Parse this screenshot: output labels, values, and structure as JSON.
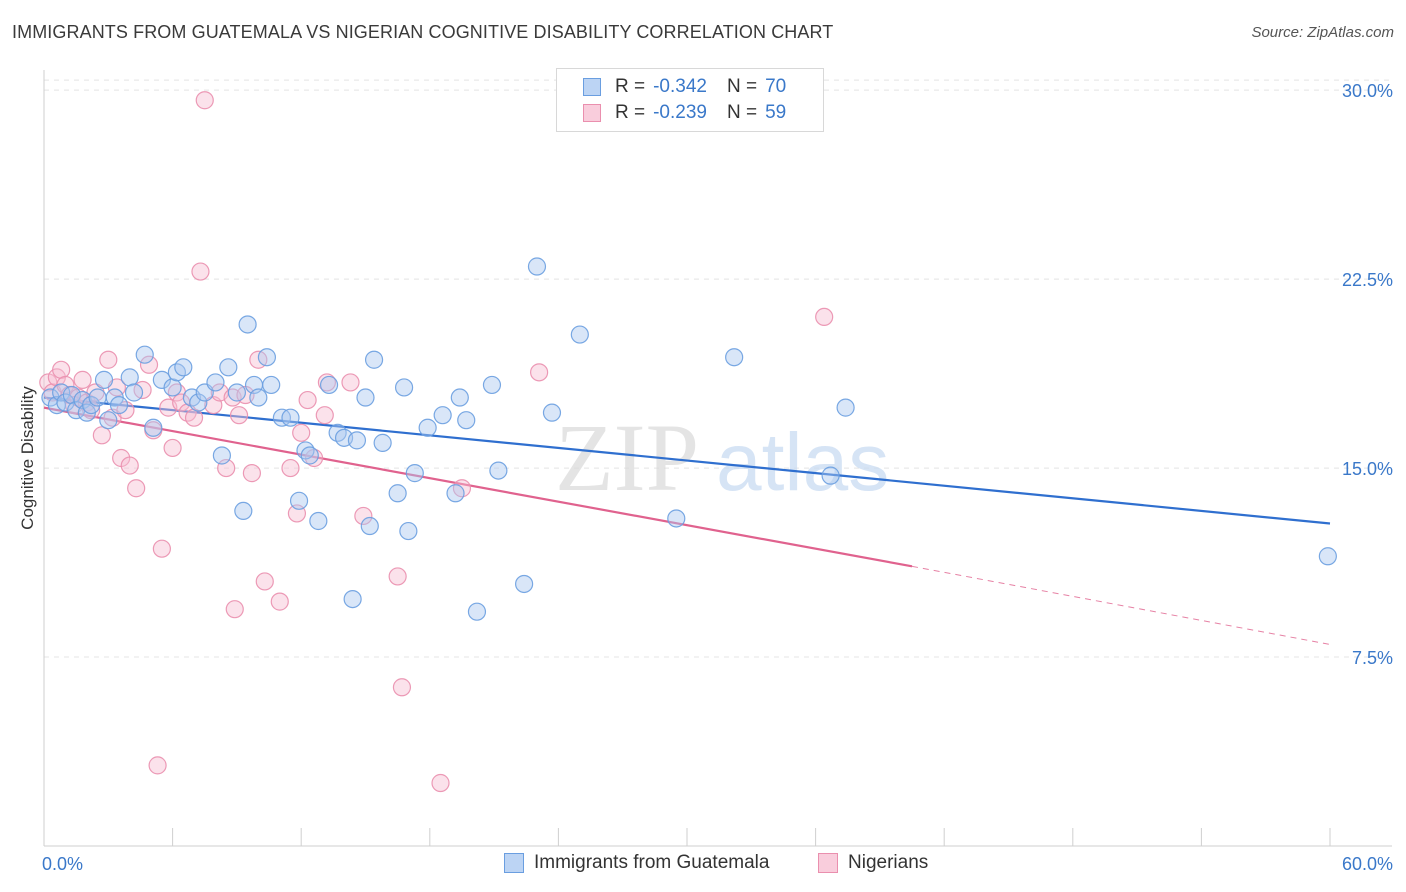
{
  "header": {
    "title": "IMMIGRANTS FROM GUATEMALA VS NIGERIAN COGNITIVE DISABILITY CORRELATION CHART",
    "source": "Source: ZipAtlas.com"
  },
  "watermark": {
    "text_zip": "ZIP",
    "text_atlas": "atlas"
  },
  "legend": {
    "rows": [
      {
        "r_label": "R =",
        "r_value": "-0.342",
        "n_label": "N =",
        "n_value": "70"
      },
      {
        "r_label": "R =",
        "r_value": "-0.239",
        "n_label": "N =",
        "n_value": "59"
      }
    ]
  },
  "colors": {
    "blue_fill": "#aac8f0",
    "blue_stroke": "#6a9ee0",
    "blue_line": "#2f6fcf",
    "pink_fill": "#f7bfd2",
    "pink_stroke": "#ea8fae",
    "pink_line": "#e0628e",
    "tick_label": "#3a78c9",
    "grid": "#e4e4e4"
  },
  "chart_data": {
    "type": "scatter",
    "title": "IMMIGRANTS FROM GUATEMALA VS NIGERIAN COGNITIVE DISABILITY CORRELATION CHART",
    "xlabel": "",
    "ylabel": "Cognitive Disability",
    "xlim": [
      0,
      60
    ],
    "ylim": [
      0,
      30.8
    ],
    "x_tick_labels": [
      "0.0%",
      "60.0%"
    ],
    "y_ticks": [
      7.5,
      15.0,
      22.5,
      30.0
    ],
    "y_tick_labels": [
      "7.5%",
      "15.0%",
      "22.5%",
      "30.0%"
    ],
    "grid": "horizontal dashed",
    "legend_position": "top-center",
    "series": [
      {
        "name": "Immigrants from Guatemala",
        "color": "#aac8f0",
        "trend": {
          "x": [
            0,
            60
          ],
          "y": [
            17.8,
            12.8
          ]
        },
        "points": [
          [
            0.3,
            17.8
          ],
          [
            0.6,
            17.5
          ],
          [
            0.8,
            18.0
          ],
          [
            1.0,
            17.6
          ],
          [
            1.3,
            17.9
          ],
          [
            1.5,
            17.3
          ],
          [
            1.8,
            17.7
          ],
          [
            2.0,
            17.2
          ],
          [
            2.2,
            17.5
          ],
          [
            2.5,
            17.8
          ],
          [
            2.8,
            18.5
          ],
          [
            3.0,
            16.9
          ],
          [
            3.3,
            17.8
          ],
          [
            3.5,
            17.5
          ],
          [
            4.0,
            18.6
          ],
          [
            4.2,
            18.0
          ],
          [
            4.7,
            19.5
          ],
          [
            5.1,
            16.6
          ],
          [
            5.5,
            18.5
          ],
          [
            6.0,
            18.2
          ],
          [
            6.2,
            18.8
          ],
          [
            6.5,
            19.0
          ],
          [
            6.9,
            17.8
          ],
          [
            7.2,
            17.6
          ],
          [
            7.5,
            18.0
          ],
          [
            8.0,
            18.4
          ],
          [
            8.3,
            15.5
          ],
          [
            8.6,
            19.0
          ],
          [
            9.0,
            18.0
          ],
          [
            9.3,
            13.3
          ],
          [
            9.5,
            20.7
          ],
          [
            9.8,
            18.3
          ],
          [
            10.0,
            17.8
          ],
          [
            10.4,
            19.4
          ],
          [
            10.6,
            18.3
          ],
          [
            11.1,
            17.0
          ],
          [
            11.5,
            17.0
          ],
          [
            11.9,
            13.7
          ],
          [
            12.2,
            15.7
          ],
          [
            12.4,
            15.5
          ],
          [
            12.8,
            12.9
          ],
          [
            13.3,
            18.3
          ],
          [
            13.7,
            16.4
          ],
          [
            14.0,
            16.2
          ],
          [
            14.4,
            9.8
          ],
          [
            14.6,
            16.1
          ],
          [
            15.0,
            17.8
          ],
          [
            15.2,
            12.7
          ],
          [
            15.4,
            19.3
          ],
          [
            15.8,
            16.0
          ],
          [
            16.5,
            14.0
          ],
          [
            16.8,
            18.2
          ],
          [
            17.0,
            12.5
          ],
          [
            17.3,
            14.8
          ],
          [
            17.9,
            16.6
          ],
          [
            18.6,
            17.1
          ],
          [
            19.2,
            14.0
          ],
          [
            19.4,
            17.8
          ],
          [
            19.7,
            16.9
          ],
          [
            20.2,
            9.3
          ],
          [
            20.9,
            18.3
          ],
          [
            21.2,
            14.9
          ],
          [
            22.4,
            10.4
          ],
          [
            23.0,
            23.0
          ],
          [
            23.7,
            17.2
          ],
          [
            25.0,
            20.3
          ],
          [
            29.5,
            13.0
          ],
          [
            32.2,
            19.4
          ],
          [
            36.7,
            14.7
          ],
          [
            37.4,
            17.4
          ],
          [
            59.9,
            11.5
          ]
        ]
      },
      {
        "name": "Nigerians",
        "color": "#f7bfd2",
        "trend": {
          "x": [
            0,
            40.5
          ],
          "y": [
            17.4,
            11.1
          ]
        },
        "trend_dashed": {
          "x": [
            40.5,
            60
          ],
          "y": [
            11.1,
            8.0
          ]
        },
        "points": [
          [
            0.2,
            18.4
          ],
          [
            0.4,
            18.0
          ],
          [
            0.6,
            18.6
          ],
          [
            0.8,
            18.9
          ],
          [
            1.0,
            18.3
          ],
          [
            1.2,
            17.9
          ],
          [
            1.4,
            17.5
          ],
          [
            1.6,
            17.8
          ],
          [
            1.8,
            18.5
          ],
          [
            2.0,
            17.6
          ],
          [
            2.2,
            17.3
          ],
          [
            2.4,
            18.0
          ],
          [
            2.7,
            16.3
          ],
          [
            3.0,
            19.3
          ],
          [
            3.2,
            17.0
          ],
          [
            3.4,
            18.2
          ],
          [
            3.6,
            15.4
          ],
          [
            3.8,
            17.3
          ],
          [
            4.0,
            15.1
          ],
          [
            4.3,
            14.2
          ],
          [
            4.6,
            18.1
          ],
          [
            4.9,
            19.1
          ],
          [
            5.1,
            16.5
          ],
          [
            5.3,
            3.2
          ],
          [
            5.5,
            11.8
          ],
          [
            5.8,
            17.4
          ],
          [
            6.0,
            15.8
          ],
          [
            6.2,
            18.0
          ],
          [
            6.4,
            17.6
          ],
          [
            6.7,
            17.2
          ],
          [
            7.0,
            17.0
          ],
          [
            7.3,
            22.8
          ],
          [
            7.5,
            29.6
          ],
          [
            7.9,
            17.5
          ],
          [
            8.2,
            18.0
          ],
          [
            8.5,
            15.0
          ],
          [
            8.8,
            17.8
          ],
          [
            8.9,
            9.4
          ],
          [
            9.1,
            17.1
          ],
          [
            9.4,
            17.9
          ],
          [
            9.7,
            14.8
          ],
          [
            10.0,
            19.3
          ],
          [
            10.3,
            10.5
          ],
          [
            11.0,
            9.7
          ],
          [
            11.5,
            15.0
          ],
          [
            11.8,
            13.2
          ],
          [
            12.3,
            17.7
          ],
          [
            12.6,
            15.4
          ],
          [
            12.0,
            16.4
          ],
          [
            13.1,
            17.1
          ],
          [
            13.2,
            18.4
          ],
          [
            14.3,
            18.4
          ],
          [
            14.9,
            13.1
          ],
          [
            16.5,
            10.7
          ],
          [
            16.7,
            6.3
          ],
          [
            18.5,
            2.5
          ],
          [
            19.5,
            14.2
          ],
          [
            23.1,
            18.8
          ],
          [
            36.4,
            21.0
          ]
        ]
      }
    ]
  },
  "bottom_legend": {
    "items": [
      {
        "label": "Immigrants from Guatemala"
      },
      {
        "label": "Nigerians"
      }
    ]
  }
}
